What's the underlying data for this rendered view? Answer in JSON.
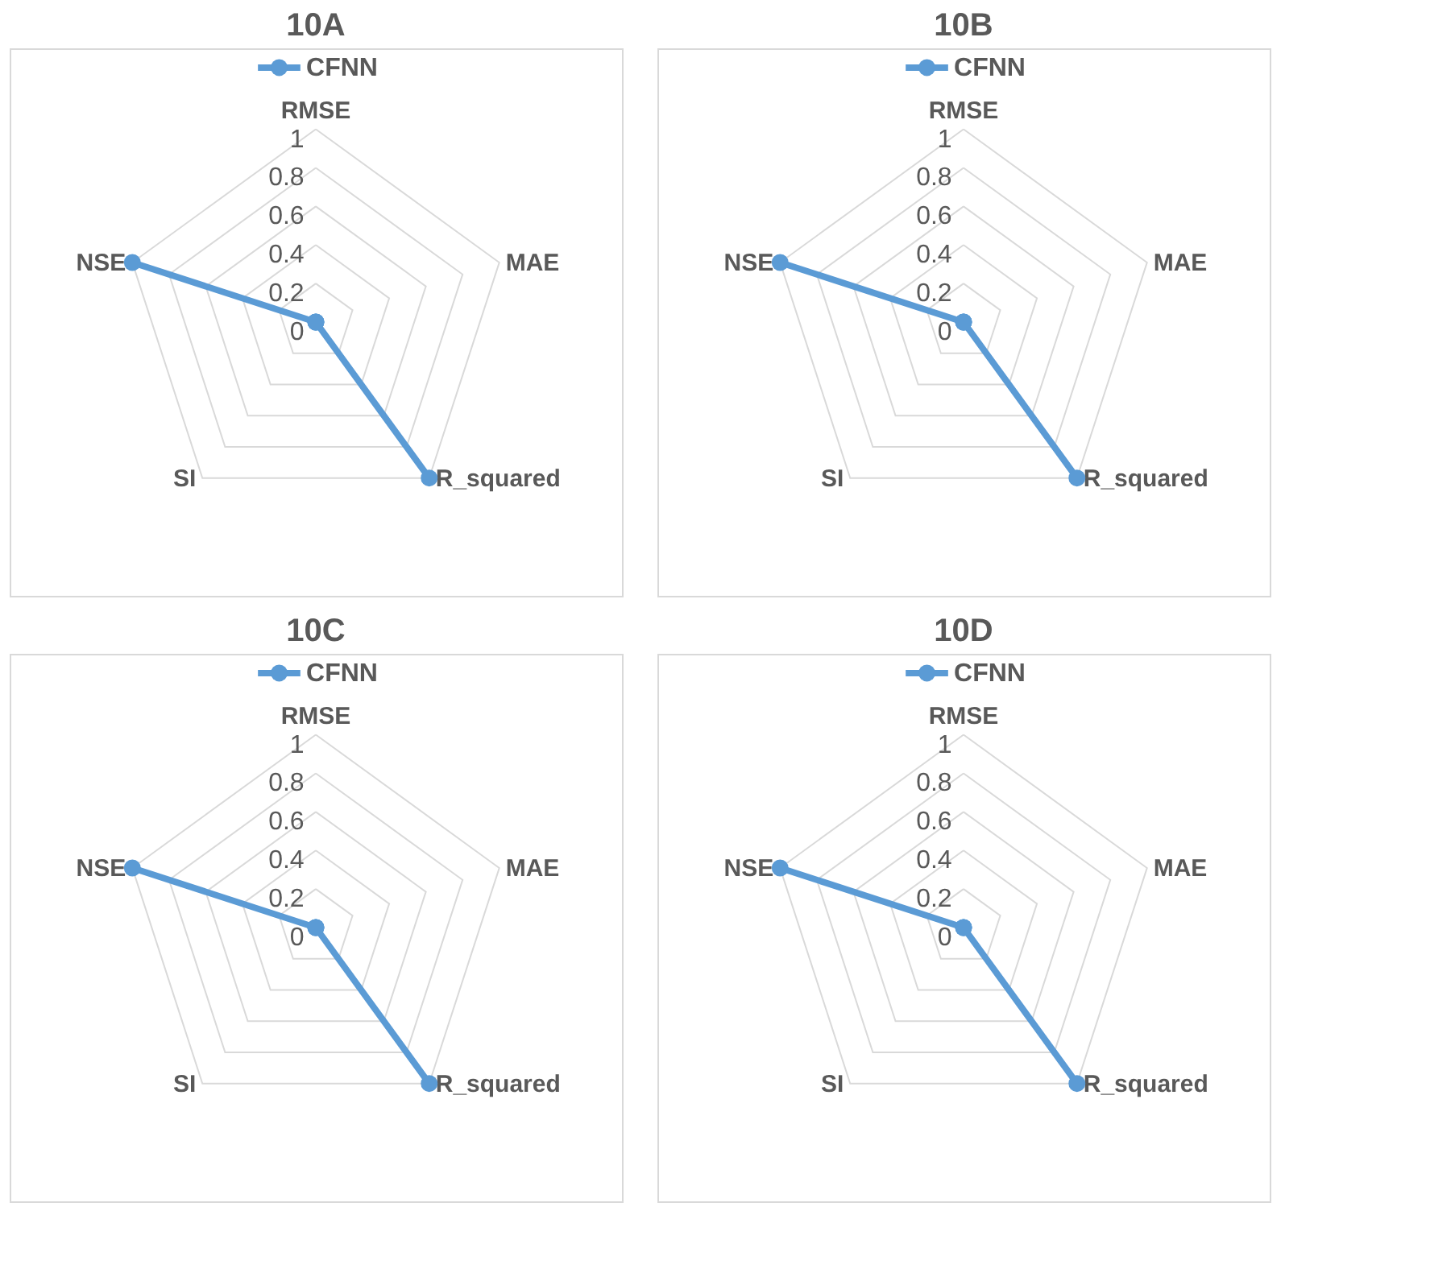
{
  "chart_data": [
    {
      "type": "radar",
      "title": "10A",
      "categories": [
        "RMSE",
        "MAE",
        "R_squared",
        "SI",
        "NSE"
      ],
      "series": [
        {
          "name": "CFNN",
          "color": "#5b9bd5",
          "values": [
            0,
            0,
            1,
            0,
            1
          ]
        }
      ],
      "ylim": [
        0,
        1
      ],
      "yticks": [
        0,
        0.2,
        0.4,
        0.6,
        0.8,
        1
      ],
      "grid": true,
      "legend": "top",
      "marker": "circle"
    },
    {
      "type": "radar",
      "title": "10B",
      "categories": [
        "RMSE",
        "MAE",
        "R_squared",
        "SI",
        "NSE"
      ],
      "series": [
        {
          "name": "CFNN",
          "color": "#5b9bd5",
          "values": [
            0,
            0,
            1,
            0,
            1
          ]
        }
      ],
      "ylim": [
        0,
        1
      ],
      "yticks": [
        0,
        0.2,
        0.4,
        0.6,
        0.8,
        1
      ],
      "grid": true,
      "legend": "top",
      "marker": "circle"
    },
    {
      "type": "radar",
      "title": "10C",
      "categories": [
        "RMSE",
        "MAE",
        "R_squared",
        "SI",
        "NSE"
      ],
      "series": [
        {
          "name": "CFNN",
          "color": "#5b9bd5",
          "values": [
            0,
            0,
            1,
            0,
            1
          ]
        }
      ],
      "ylim": [
        0,
        1
      ],
      "yticks": [
        0,
        0.2,
        0.4,
        0.6,
        0.8,
        1
      ],
      "grid": true,
      "legend": "top",
      "marker": "circle"
    },
    {
      "type": "radar",
      "title": "10D",
      "categories": [
        "RMSE",
        "MAE",
        "R_squared",
        "SI",
        "NSE"
      ],
      "series": [
        {
          "name": "CFNN",
          "color": "#5b9bd5",
          "values": [
            0,
            0,
            1,
            0,
            1
          ]
        }
      ],
      "ylim": [
        0,
        1
      ],
      "yticks": [
        0,
        0.2,
        0.4,
        0.6,
        0.8,
        1
      ],
      "grid": true,
      "legend": "top",
      "marker": "circle"
    }
  ]
}
